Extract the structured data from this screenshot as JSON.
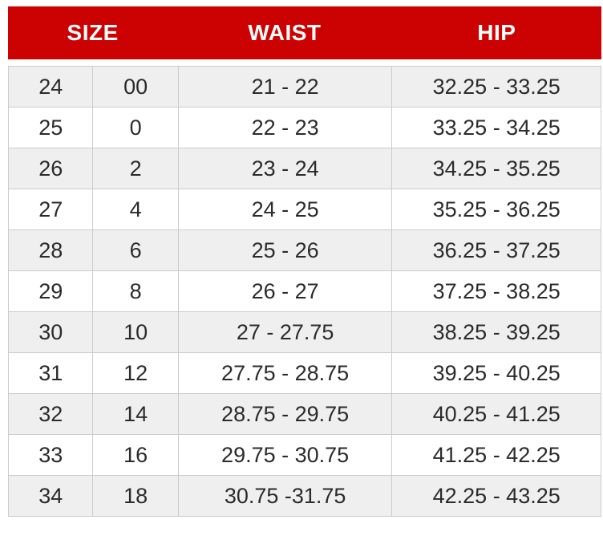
{
  "colors": {
    "header_bg": "#cc0202",
    "header_text": "#ffffff",
    "row_bg": "#ffffff",
    "row_alt_bg": "#efefef",
    "border": "#cccccc",
    "text": "#2b2b2b"
  },
  "table": {
    "headers": [
      {
        "label": "SIZE"
      },
      {
        "label": "WAIST"
      },
      {
        "label": "HIP"
      }
    ],
    "rows": [
      {
        "size_numeric": "24",
        "size_standard": "00",
        "waist": "21 - 22",
        "hip": "32.25 - 33.25"
      },
      {
        "size_numeric": "25",
        "size_standard": "0",
        "waist": "22 - 23",
        "hip": "33.25 - 34.25"
      },
      {
        "size_numeric": "26",
        "size_standard": "2",
        "waist": "23 - 24",
        "hip": "34.25 - 35.25"
      },
      {
        "size_numeric": "27",
        "size_standard": "4",
        "waist": "24 - 25",
        "hip": "35.25 - 36.25"
      },
      {
        "size_numeric": "28",
        "size_standard": "6",
        "waist": "25 - 26",
        "hip": "36.25 - 37.25"
      },
      {
        "size_numeric": "29",
        "size_standard": "8",
        "waist": "26 - 27",
        "hip": "37.25 - 38.25"
      },
      {
        "size_numeric": "30",
        "size_standard": "10",
        "waist": "27 - 27.75",
        "hip": "38.25 - 39.25"
      },
      {
        "size_numeric": "31",
        "size_standard": "12",
        "waist": "27.75 - 28.75",
        "hip": "39.25 - 40.25"
      },
      {
        "size_numeric": "32",
        "size_standard": "14",
        "waist": "28.75 - 29.75",
        "hip": "40.25 - 41.25"
      },
      {
        "size_numeric": "33",
        "size_standard": "16",
        "waist": "29.75 - 30.75",
        "hip": "41.25 - 42.25"
      },
      {
        "size_numeric": "34",
        "size_standard": "18",
        "waist": "30.75 -31.75",
        "hip": "42.25 - 43.25"
      }
    ]
  }
}
